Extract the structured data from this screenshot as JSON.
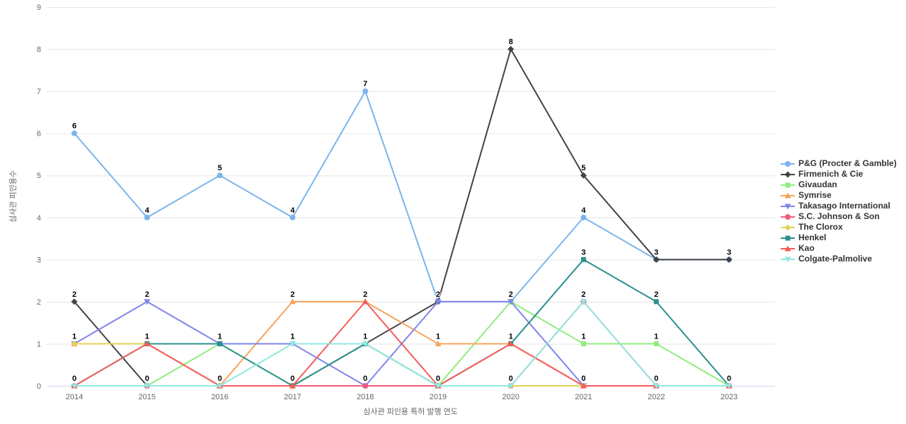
{
  "chart_data": {
    "type": "line",
    "title": "",
    "x": [
      "2014",
      "2015",
      "2016",
      "2017",
      "2018",
      "2019",
      "2020",
      "2021",
      "2022",
      "2023"
    ],
    "xlabel": "심사관 피인용 특허 발행 연도",
    "ylabel": "심사관 피인용수",
    "ylim": [
      0,
      9
    ],
    "yticks": [
      0,
      1,
      2,
      3,
      4,
      5,
      6,
      7,
      8,
      9
    ],
    "grid": "horizontal",
    "legend_position": "right",
    "data_labels": true,
    "series": [
      {
        "name": "P&G (Procter & Gamble)",
        "color": "#7cb5ec",
        "marker": "circle",
        "values": [
          6,
          4,
          5,
          4,
          7,
          2,
          2,
          4,
          3,
          3
        ]
      },
      {
        "name": "Firmenich & Cie",
        "color": "#434348",
        "marker": "diamond",
        "values": [
          2,
          0,
          0,
          0,
          1,
          2,
          8,
          5,
          3,
          3
        ]
      },
      {
        "name": "Givaudan",
        "color": "#90ed7d",
        "marker": "square",
        "values": [
          0,
          0,
          1,
          0,
          0,
          0,
          2,
          1,
          1,
          0
        ]
      },
      {
        "name": "Symrise",
        "color": "#f7a35c",
        "marker": "triangle",
        "values": [
          1,
          1,
          0,
          2,
          2,
          1,
          1,
          0,
          0,
          0
        ]
      },
      {
        "name": "Takasago International",
        "color": "#8085e9",
        "marker": "triangle-down",
        "values": [
          1,
          2,
          1,
          1,
          0,
          2,
          2,
          0,
          0,
          0
        ]
      },
      {
        "name": "S.C. Johnson & Son",
        "color": "#f15c80",
        "marker": "circle",
        "values": [
          0,
          0,
          0,
          0,
          0,
          0,
          0,
          2,
          0,
          0
        ]
      },
      {
        "name": "The Clorox",
        "color": "#e4d354",
        "marker": "diamond",
        "values": [
          1,
          1,
          0,
          0,
          1,
          0,
          0,
          0,
          0,
          0
        ]
      },
      {
        "name": "Henkel",
        "color": "#2b908f",
        "marker": "square",
        "values": [
          0,
          1,
          1,
          0,
          1,
          0,
          1,
          3,
          2,
          0
        ]
      },
      {
        "name": "Kao",
        "color": "#f45b5b",
        "marker": "triangle",
        "values": [
          0,
          1,
          0,
          0,
          2,
          0,
          1,
          0,
          0,
          0
        ]
      },
      {
        "name": "Colgate-Palmolive",
        "color": "#91e8e1",
        "marker": "triangle-down",
        "values": [
          0,
          0,
          0,
          1,
          1,
          0,
          0,
          2,
          0,
          0
        ]
      }
    ],
    "colors": {
      "tick_label": "#666666",
      "axis_line": "#ccd6eb",
      "gridline": "#e6e6e6",
      "legend_text": "#333333",
      "data_label": "#000000",
      "background": "#ffffff"
    }
  }
}
